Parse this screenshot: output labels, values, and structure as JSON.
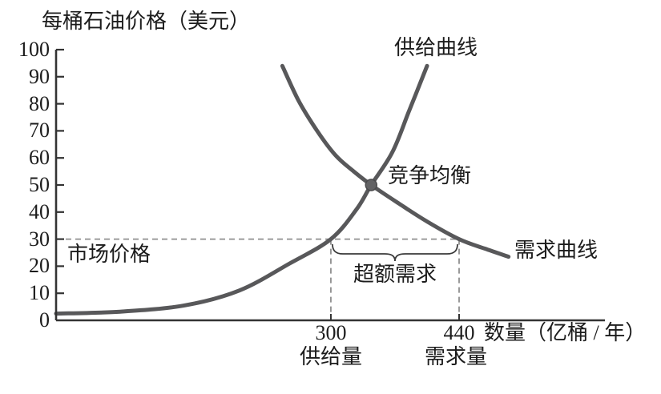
{
  "figure": {
    "background": "#ffffff",
    "curve_color": "#58585a",
    "axis_color": "#333333",
    "dash_color": "#8f8f8f",
    "brace_color": "#3a3a3a",
    "text_color": "#1c1c1c",
    "point_fill": "#626264",
    "point_edge": "#4a4a4c"
  },
  "chart_data": {
    "type": "line",
    "title": "每桶石油价格（美元）",
    "ylabel": "每桶石油价格（美元）",
    "xlabel": "数量（亿桶 / 年）",
    "ylim": [
      0,
      100
    ],
    "y_ticks": [
      0,
      10,
      20,
      30,
      40,
      50,
      60,
      70,
      80,
      90,
      100
    ],
    "x_ticks": [
      {
        "value": 300,
        "label": "300",
        "sublabel": "供给量"
      },
      {
        "value": 440,
        "label": "440",
        "sublabel": "需求量"
      }
    ],
    "grid": false,
    "legend_position": "inline-annotations",
    "series": [
      {
        "name": "供给曲线",
        "role": "supply",
        "points": [
          [
            0,
            2.5
          ],
          [
            70,
            3.2
          ],
          [
            140,
            5.5
          ],
          [
            200,
            11
          ],
          [
            255,
            21
          ],
          [
            300,
            30
          ],
          [
            328,
            41
          ],
          [
            344,
            50
          ],
          [
            367,
            62
          ],
          [
            385,
            77
          ],
          [
            405,
            94
          ]
        ]
      },
      {
        "name": "需求曲线",
        "role": "demand",
        "points": [
          [
            247,
            94
          ],
          [
            265,
            81
          ],
          [
            285,
            70
          ],
          [
            305,
            61
          ],
          [
            325,
            55
          ],
          [
            344,
            50
          ],
          [
            375,
            43
          ],
          [
            405,
            36.5
          ],
          [
            440,
            30
          ],
          [
            468,
            26.5
          ],
          [
            494,
            23.5
          ]
        ]
      }
    ],
    "annotations": {
      "equilibrium": {
        "label": "竞争均衡",
        "quantity": 344,
        "price": 50
      },
      "market_price": {
        "label": "市场价格",
        "price": 30
      },
      "excess_demand": {
        "label": "超额需求",
        "from_quantity": 300,
        "to_quantity": 440
      },
      "supply_at_market_price": 300,
      "demand_at_market_price": 440
    }
  }
}
